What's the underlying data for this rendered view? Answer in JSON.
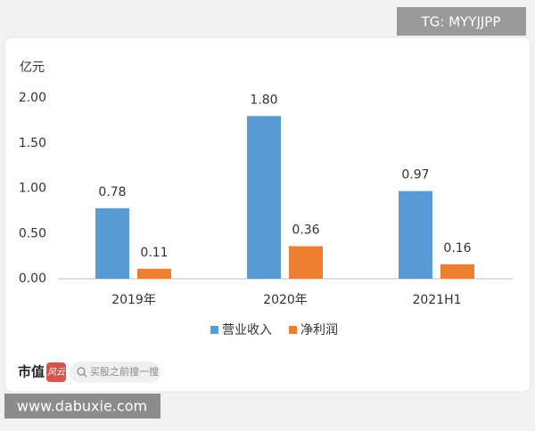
{
  "chart_data": {
    "type": "bar",
    "y_axis_label": "亿元",
    "categories": [
      "2019年",
      "2020年",
      "2021H1"
    ],
    "series": [
      {
        "name": "营业收入",
        "color": "#5b9bd5",
        "values": [
          0.78,
          1.8,
          0.97
        ],
        "value_labels": [
          "0.78",
          "1.80",
          "0.97"
        ]
      },
      {
        "name": "净利润",
        "color": "#ed7d31",
        "values": [
          0.11,
          0.36,
          0.16
        ],
        "value_labels": [
          "0.11",
          "0.36",
          "0.16"
        ]
      }
    ],
    "ylim": [
      0,
      2
    ],
    "yticks": [
      {
        "value": 0,
        "label": "0.00"
      },
      {
        "value": 0.5,
        "label": "0.50"
      },
      {
        "value": 1,
        "label": "1.00"
      },
      {
        "value": 1.5,
        "label": "1.50"
      },
      {
        "value": 2,
        "label": "2.00"
      }
    ],
    "legend": "bottom"
  },
  "header": {
    "tag": "TG: MYYJJPP"
  },
  "footer": {
    "logo_left": "市值",
    "logo_right": "风云",
    "search": "买股之前搜一搜",
    "url": "www.dabuxie.com"
  }
}
